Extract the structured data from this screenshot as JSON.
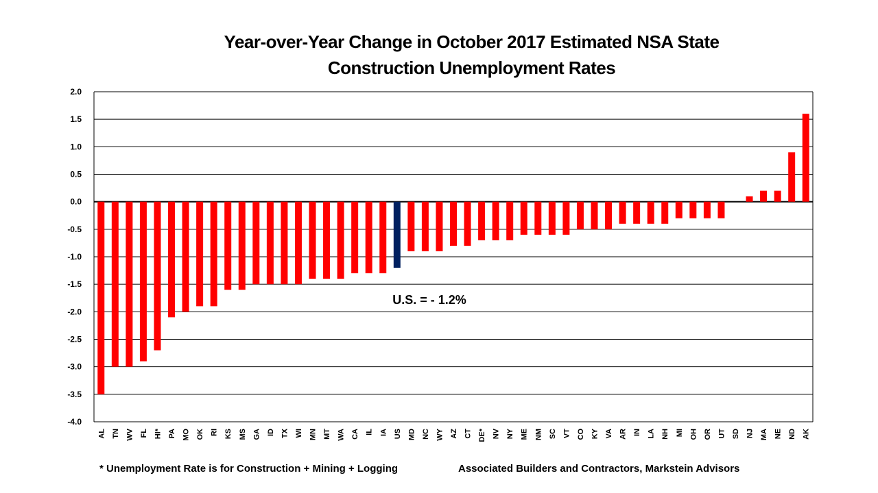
{
  "chart_data": {
    "type": "bar",
    "title_lines": [
      "Year-over-Year Change in October 2017 Estimated NSA State",
      "Construction Unemployment Rates"
    ],
    "xlabel": "",
    "ylabel": "",
    "ylim": [
      -4.0,
      2.0
    ],
    "yticks": [
      "2.0",
      "1.5",
      "1.0",
      "0.5",
      "0.0",
      "-0.5",
      "-1.0",
      "-1.5",
      "-2.0",
      "-2.5",
      "-3.0",
      "-3.5",
      "-4.0"
    ],
    "grid": true,
    "categories": [
      "AL",
      "TN",
      "WV",
      "FL",
      "HI*",
      "PA",
      "MO",
      "OK",
      "RI",
      "KS",
      "MS",
      "GA",
      "ID",
      "TX",
      "WI",
      "MN",
      "MT",
      "WA",
      "CA",
      "IL",
      "IA",
      "US",
      "MD",
      "NC",
      "WY",
      "AZ",
      "CT",
      "DE*",
      "NV",
      "NY",
      "ME",
      "NM",
      "SC",
      "VT",
      "CO",
      "KY",
      "VA",
      "AR",
      "IN",
      "LA",
      "NH",
      "MI",
      "OH",
      "OR",
      "UT",
      "SD",
      "NJ",
      "MA",
      "NE",
      "ND",
      "AK"
    ],
    "values": [
      -3.5,
      -3.0,
      -3.0,
      -2.9,
      -2.7,
      -2.1,
      -2.0,
      -1.9,
      -1.9,
      -1.6,
      -1.6,
      -1.5,
      -1.5,
      -1.5,
      -1.5,
      -1.4,
      -1.4,
      -1.4,
      -1.3,
      -1.3,
      -1.3,
      -1.2,
      -0.9,
      -0.9,
      -0.9,
      -0.8,
      -0.8,
      -0.7,
      -0.7,
      -0.7,
      -0.6,
      -0.6,
      -0.6,
      -0.6,
      -0.5,
      -0.5,
      -0.5,
      -0.4,
      -0.4,
      -0.4,
      -0.4,
      -0.3,
      -0.3,
      -0.3,
      -0.3,
      0.0,
      0.1,
      0.2,
      0.2,
      0.9,
      1.6
    ],
    "highlight_category": "US",
    "colors": {
      "bar": "#FF0000",
      "highlight": "#002060"
    },
    "annotation": "U.S. = - 1.2%",
    "legend": "none"
  },
  "footnotes": {
    "left": "* Unemployment Rate is for Construction + Mining + Logging",
    "right": "Associated Builders and Contractors, Markstein Advisors"
  }
}
